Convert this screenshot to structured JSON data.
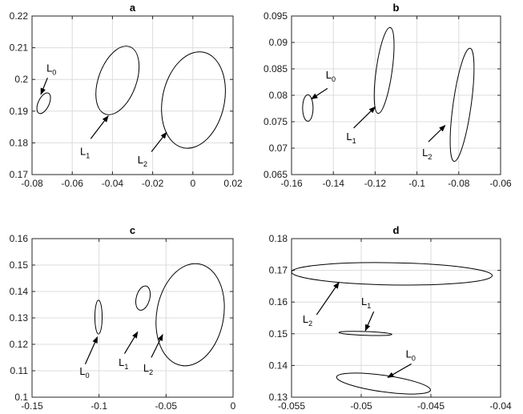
{
  "chart_data": [
    {
      "type": "scatter",
      "title": "a",
      "xlim": [
        -0.08,
        0.02
      ],
      "ylim": [
        0.17,
        0.22
      ],
      "xticks": [
        -0.08,
        -0.06,
        -0.04,
        -0.02,
        0,
        0.02
      ],
      "xtick_labels": [
        "-0.08",
        "-0.06",
        "-0.04",
        "-0.02",
        "0",
        "0.02"
      ],
      "yticks": [
        0.17,
        0.18,
        0.19,
        0.2,
        0.21,
        0.22
      ],
      "ytick_labels": [
        "0.17",
        "0.18",
        "0.19",
        "0.2",
        "0.21",
        "0.22"
      ],
      "grid": true,
      "ellipses": [
        {
          "cx": -0.0742,
          "cy": 0.1925,
          "rx": 0.0027,
          "ry": 0.0035,
          "angle": 25
        },
        {
          "cx": -0.0375,
          "cy": 0.1997,
          "rx": 0.0094,
          "ry": 0.0113,
          "angle": 20
        },
        {
          "cx": 0.0003,
          "cy": 0.1935,
          "rx": 0.0154,
          "ry": 0.0154,
          "angle": 12
        }
      ],
      "annotations": [
        {
          "text": "L",
          "sub": "0",
          "tx": -0.0728,
          "ty": 0.2025,
          "ax": -0.0723,
          "ay": 0.2005,
          "hx": -0.0756,
          "hy": 0.1953
        },
        {
          "text": "L",
          "sub": "1",
          "tx": -0.0561,
          "ty": 0.1762,
          "ax": -0.0508,
          "ay": 0.1813,
          "hx": -0.0421,
          "hy": 0.1885
        },
        {
          "text": "L",
          "sub": "2",
          "tx": -0.0275,
          "ty": 0.1735,
          "ax": -0.0206,
          "ay": 0.1772,
          "hx": -0.0131,
          "hy": 0.1833
        }
      ]
    },
    {
      "type": "scatter",
      "title": "b",
      "xlim": [
        -0.16,
        -0.06
      ],
      "ylim": [
        0.065,
        0.095
      ],
      "xticks": [
        -0.16,
        -0.14,
        -0.12,
        -0.1,
        -0.08,
        -0.06
      ],
      "xtick_labels": [
        "-0.16",
        "-0.14",
        "-0.12",
        "-0.1",
        "-0.08",
        "-0.06"
      ],
      "yticks": [
        0.065,
        0.07,
        0.075,
        0.08,
        0.085,
        0.09,
        0.095
      ],
      "ytick_labels": [
        "0.065",
        "0.07",
        "0.075",
        "0.08",
        "0.085",
        "0.09",
        "0.095"
      ],
      "grid": true,
      "ellipses": [
        {
          "cx": -0.1522,
          "cy": 0.0776,
          "rx": 0.0025,
          "ry": 0.0025,
          "angle": 0
        },
        {
          "cx": -0.1157,
          "cy": 0.0847,
          "rx": 0.0038,
          "ry": 0.0082,
          "angle": 8
        },
        {
          "cx": -0.0784,
          "cy": 0.0782,
          "rx": 0.0043,
          "ry": 0.0108,
          "angle": 8
        }
      ],
      "annotations": [
        {
          "text": "L",
          "sub": "0",
          "tx": -0.1436,
          "ty": 0.0832,
          "ax": -0.1428,
          "ay": 0.0813,
          "hx": -0.1505,
          "hy": 0.0793
        },
        {
          "text": "L",
          "sub": "1",
          "tx": -0.1338,
          "ty": 0.0715,
          "ax": -0.1303,
          "ay": 0.0738,
          "hx": -0.12,
          "hy": 0.0778
        },
        {
          "text": "L",
          "sub": "2",
          "tx": -0.0975,
          "ty": 0.0685,
          "ax": -0.0945,
          "ay": 0.0712,
          "hx": -0.0865,
          "hy": 0.0743
        }
      ]
    },
    {
      "type": "scatter",
      "title": "c",
      "xlim": [
        -0.15,
        0
      ],
      "ylim": [
        0.1,
        0.16
      ],
      "xticks": [
        -0.15,
        -0.1,
        -0.05,
        0
      ],
      "xtick_labels": [
        "-0.15",
        "-0.1",
        "-0.05",
        "0"
      ],
      "yticks": [
        0.1,
        0.11,
        0.12,
        0.13,
        0.14,
        0.15,
        0.16
      ],
      "ytick_labels": [
        "0.1",
        "0.11",
        "0.12",
        "0.13",
        "0.14",
        "0.15",
        "0.16"
      ],
      "grid": true,
      "ellipses": [
        {
          "cx": -0.1004,
          "cy": 0.1303,
          "rx": 0.0027,
          "ry": 0.0064,
          "angle": 0
        },
        {
          "cx": -0.0672,
          "cy": 0.1375,
          "rx": 0.005,
          "ry": 0.0047,
          "angle": 15
        },
        {
          "cx": -0.032,
          "cy": 0.1312,
          "rx": 0.025,
          "ry": 0.0195,
          "angle": 10
        }
      ],
      "annotations": [
        {
          "text": "L",
          "sub": "0",
          "tx": -0.1145,
          "ty": 0.1085,
          "ax": -0.1103,
          "ay": 0.1125,
          "hx": -0.1012,
          "hy": 0.1228
        },
        {
          "text": "L",
          "sub": "1",
          "tx": -0.0854,
          "ty": 0.1118,
          "ax": -0.081,
          "ay": 0.1165,
          "hx": -0.0712,
          "hy": 0.1247
        },
        {
          "text": "L",
          "sub": "2",
          "tx": -0.067,
          "ty": 0.1097,
          "ax": -0.061,
          "ay": 0.115,
          "hx": -0.0525,
          "hy": 0.1237
        }
      ]
    },
    {
      "type": "scatter",
      "title": "d",
      "xlim": [
        -0.055,
        -0.04
      ],
      "ylim": [
        0.13,
        0.18
      ],
      "xticks": [
        -0.055,
        -0.05,
        -0.045,
        -0.04
      ],
      "xtick_labels": [
        "-0.055",
        "-0.05",
        "-0.045",
        "-0.04"
      ],
      "yticks": [
        0.13,
        0.14,
        0.15,
        0.16,
        0.17,
        0.18
      ],
      "ytick_labels": [
        "0.13",
        "0.14",
        "0.15",
        "0.16",
        "0.17",
        "0.18"
      ],
      "grid": true,
      "ellipses": [
        {
          "cx": -0.0484,
          "cy": 0.1343,
          "rx": 0.0034,
          "ry": 0.0026,
          "angle": 8
        },
        {
          "cx": -0.0497,
          "cy": 0.1501,
          "rx": 0.0019,
          "ry": 0.0006,
          "angle": 2
        },
        {
          "cx": -0.0478,
          "cy": 0.1689,
          "rx": 0.0072,
          "ry": 0.0035,
          "angle": 1
        }
      ],
      "annotations": [
        {
          "text": "L",
          "sub": "0",
          "tx": -0.0468,
          "ty": 0.1425,
          "ax": -0.0464,
          "ay": 0.1405,
          "hx": -0.0481,
          "hy": 0.1362
        },
        {
          "text": "L",
          "sub": "1",
          "tx": -0.05,
          "ty": 0.159,
          "ax": -0.0491,
          "ay": 0.157,
          "hx": -0.0497,
          "hy": 0.151
        },
        {
          "text": "L",
          "sub": "2",
          "tx": -0.0542,
          "ty": 0.1535,
          "ax": -0.0532,
          "ay": 0.156,
          "hx": -0.0516,
          "hy": 0.1662
        }
      ]
    }
  ]
}
